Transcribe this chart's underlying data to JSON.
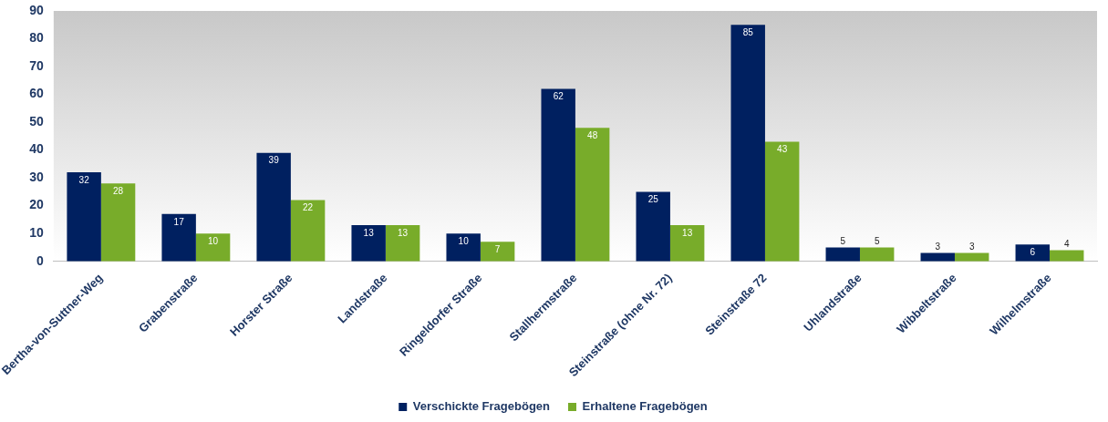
{
  "chart_data": {
    "type": "bar",
    "categories": [
      "Bertha-von-Suttner-Weg",
      "Grabenstraße",
      "Horster Straße",
      "Landstraße",
      "Ringeldorfer Straße",
      "Stallhermstraße",
      "Steinstraße (ohne Nr. 72)",
      "Steinstraße 72",
      "Uhlandstraße",
      "Wibbeltstraße",
      "Wilhelmstraße"
    ],
    "series": [
      {
        "name": "Verschickte Fragebögen",
        "color": "#002060",
        "values": [
          32,
          17,
          39,
          13,
          10,
          62,
          25,
          85,
          5,
          3,
          6
        ]
      },
      {
        "name": "Erhaltene Fragebögen",
        "color": "#78ac2a",
        "values": [
          28,
          10,
          22,
          13,
          7,
          48,
          13,
          43,
          5,
          3,
          4
        ]
      }
    ],
    "ylim": [
      0,
      90
    ],
    "yticks": [
      0,
      10,
      20,
      30,
      40,
      50,
      60,
      70,
      80,
      90
    ],
    "grid": false,
    "legend": "bottom",
    "data_labels": true
  }
}
